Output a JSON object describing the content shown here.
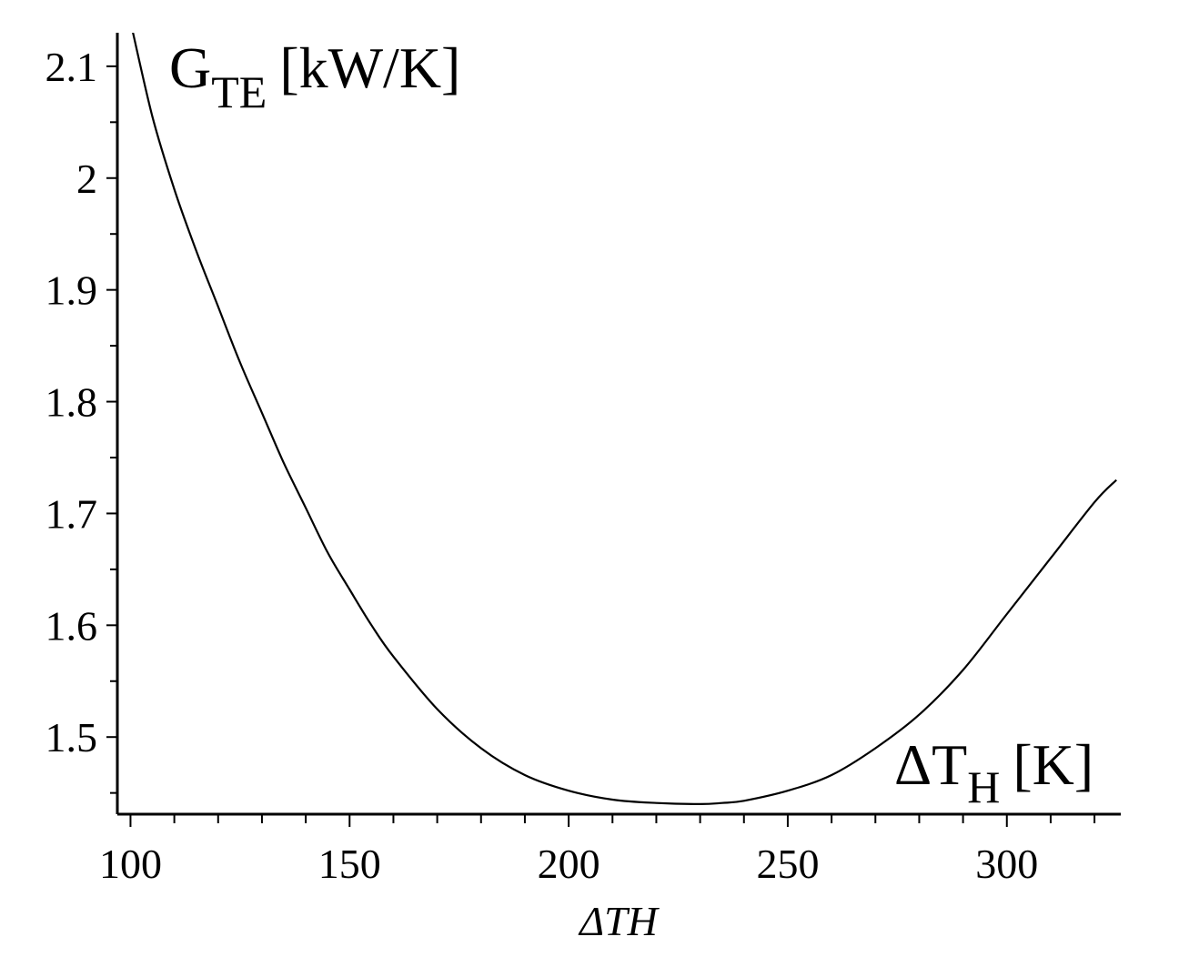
{
  "chart_data": {
    "type": "line",
    "xlabel": "ΔTH",
    "x_annotation": {
      "main": "ΔT",
      "sub": "H",
      "unit": "[K]"
    },
    "y_annotation": {
      "main": "G",
      "sub": "TE",
      "unit": "[kW/K]"
    },
    "xlim": [
      97,
      326
    ],
    "ylim": [
      1.431,
      2.13
    ],
    "x_ticks": [
      100,
      150,
      200,
      250,
      300
    ],
    "x_tick_labels": [
      "100",
      "150",
      "200",
      "250",
      "300"
    ],
    "y_ticks": [
      1.5,
      1.6,
      1.7,
      1.8,
      1.9,
      2.0,
      2.1
    ],
    "y_tick_labels": [
      "1.5",
      "1.6",
      "1.7",
      "1.8",
      "1.9",
      "2",
      "2.1"
    ],
    "x_minor_step": 10,
    "y_minor_step": 0.05,
    "grid": false,
    "series": [
      {
        "x": [
          100,
          105,
          110,
          115,
          120,
          125,
          130,
          135,
          140,
          145,
          150,
          155,
          160,
          170,
          180,
          190,
          200,
          210,
          220,
          230,
          235,
          240,
          250,
          260,
          270,
          280,
          290,
          300,
          310,
          320,
          325
        ],
        "y": [
          2.14,
          2.055,
          1.99,
          1.935,
          1.885,
          1.835,
          1.79,
          1.745,
          1.705,
          1.665,
          1.632,
          1.6,
          1.572,
          1.525,
          1.49,
          1.466,
          1.452,
          1.444,
          1.441,
          1.44,
          1.441,
          1.443,
          1.452,
          1.466,
          1.49,
          1.52,
          1.56,
          1.61,
          1.66,
          1.71,
          1.73
        ]
      }
    ]
  }
}
